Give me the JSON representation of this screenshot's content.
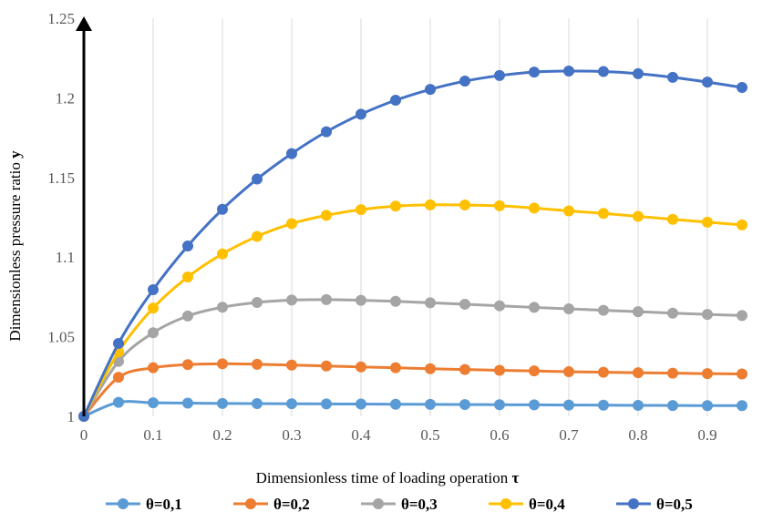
{
  "chart_data": {
    "type": "line",
    "title": "",
    "xlabel": "Dimensionless time of loading operation",
    "xlabel_symbol": "τ",
    "ylabel": "Dimensionless pressure ratio",
    "ylabel_symbol": "y",
    "xlim": [
      0,
      1
    ],
    "ylim": [
      1,
      1.25
    ],
    "x_ticks": [
      "0",
      "0.1",
      "0.2",
      "0.3",
      "0.4",
      "0.5",
      "0.6",
      "0.7",
      "0.8",
      "0.9"
    ],
    "y_ticks": [
      "1",
      "1.05",
      "1.1",
      "1.15",
      "1.2",
      "1.25"
    ],
    "grid": "vertical",
    "legend_position": "bottom",
    "x": [
      0,
      0.05,
      0.1,
      0.15,
      0.2,
      0.25,
      0.3,
      0.35,
      0.4,
      0.45,
      0.5,
      0.55,
      0.6,
      0.65,
      0.7,
      0.75,
      0.8,
      0.85,
      0.9,
      0.95
    ],
    "series": [
      {
        "name": "θ=0,1",
        "color": "#5b9bd5",
        "values": [
          1,
          1.0088,
          1.0085,
          1.0083,
          1.0081,
          1.008,
          1.0079,
          1.0078,
          1.0077,
          1.0076,
          1.0075,
          1.0074,
          1.0073,
          1.0072,
          1.0071,
          1.007,
          1.0069,
          1.0068,
          1.0067,
          1.0067
        ]
      },
      {
        "name": "θ=0,2",
        "color": "#ed7d31",
        "values": [
          1,
          1.0245,
          1.0305,
          1.0325,
          1.033,
          1.0327,
          1.0322,
          1.0316,
          1.031,
          1.0305,
          1.0299,
          1.0294,
          1.0289,
          1.0285,
          1.028,
          1.0277,
          1.0274,
          1.0271,
          1.0268,
          1.0266
        ]
      },
      {
        "name": "θ=0,3",
        "color": "#a5a5a5",
        "values": [
          1,
          1.0345,
          1.0525,
          1.063,
          1.0685,
          1.0715,
          1.073,
          1.0733,
          1.0729,
          1.0722,
          1.0713,
          1.0704,
          1.0694,
          1.0684,
          1.0675,
          1.0666,
          1.0657,
          1.0648,
          1.064,
          1.0633
        ]
      },
      {
        "name": "θ=0,4",
        "color": "#ffc000",
        "values": [
          1,
          1.0405,
          1.068,
          1.0875,
          1.102,
          1.113,
          1.121,
          1.1262,
          1.1298,
          1.132,
          1.1328,
          1.1327,
          1.1322,
          1.1308,
          1.129,
          1.1274,
          1.1256,
          1.1237,
          1.1219,
          1.1202
        ]
      },
      {
        "name": "θ=0,5",
        "color": "#4472c4",
        "values": [
          1,
          1.0458,
          1.0795,
          1.107,
          1.13,
          1.149,
          1.165,
          1.1787,
          1.1897,
          1.1985,
          1.2053,
          1.2105,
          1.214,
          1.2162,
          1.2168,
          1.2165,
          1.2152,
          1.2129,
          1.2099,
          1.2065
        ]
      }
    ]
  }
}
